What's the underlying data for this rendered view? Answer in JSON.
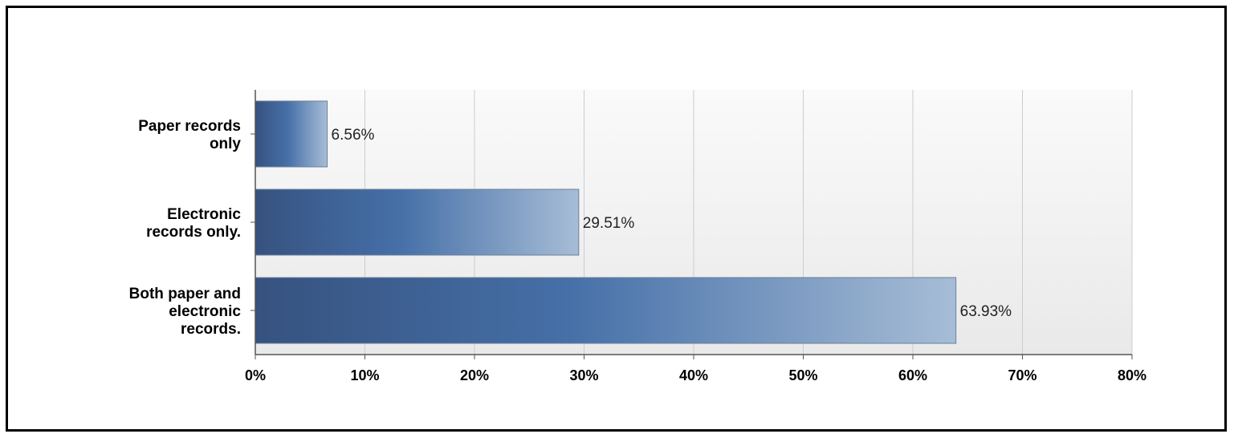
{
  "chart_data": {
    "type": "bar",
    "orientation": "horizontal",
    "title": "",
    "xlabel": "",
    "ylabel": "",
    "categories": [
      [
        "Paper records",
        "only"
      ],
      [
        "Electronic",
        "records only."
      ],
      [
        "Both paper and",
        "electronic",
        "records."
      ]
    ],
    "values": [
      6.56,
      29.51,
      63.93
    ],
    "value_labels": [
      "6.56%",
      "29.51%",
      "63.93%"
    ],
    "xlim": [
      0,
      80
    ],
    "xticks": [
      0,
      10,
      20,
      30,
      40,
      50,
      60,
      70,
      80
    ],
    "xtick_labels": [
      "0%",
      "10%",
      "20%",
      "30%",
      "40%",
      "50%",
      "60%",
      "70%",
      "80%"
    ],
    "grid": true,
    "legend": "none",
    "colors": {
      "bar_dark": "#36527f",
      "bar_mid": "#4670a8",
      "bar_light": "#a7bdd6",
      "grid": "#cccccc"
    }
  }
}
